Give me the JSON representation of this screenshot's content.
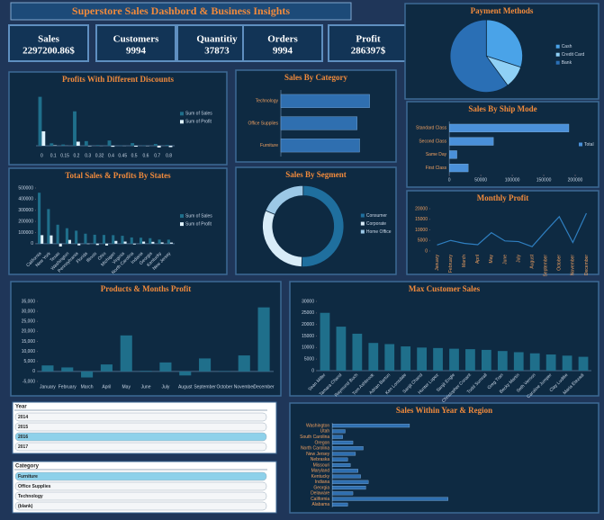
{
  "header": {
    "title": "Superstore Sales Dashbord  & Business Insights"
  },
  "kpis": [
    {
      "label": "Sales",
      "value": "2297200.86$"
    },
    {
      "label": "Customers",
      "value": "9994"
    },
    {
      "label": "Quantitiy",
      "value": "37873"
    },
    {
      "label": "Orders",
      "value": "9994"
    },
    {
      "label": "Profit",
      "value": "286397$"
    }
  ],
  "chart_data": [
    {
      "type": "pie",
      "title": "Payment Methods",
      "categories": [
        "Cash",
        "Credit Card",
        "Bank"
      ],
      "values": [
        689160,
        229720,
        1378320
      ],
      "colors": [
        "#4aa3e8",
        "#8fd0f5",
        "#2a6fb5"
      ],
      "legend": true
    },
    {
      "type": "bar",
      "title": "Profits With Different Discounts",
      "categories": [
        "0",
        "0.1",
        "0.15",
        "0.2",
        "0.3",
        "0.32",
        "0.4",
        "0.45",
        "0.5",
        "0.6",
        "0.7",
        "0.8"
      ],
      "series": [
        {
          "name": "Sum of Sales",
          "color": "#1f6f8b",
          "values": [
            1087908,
            54369,
            27558,
            764595,
            103226,
            14493,
            116418,
            5484,
            58918,
            6645,
            40620,
            16965
          ]
        },
        {
          "name": "Sum of Profit",
          "color": "#dff3ff",
          "values": [
            320988,
            9029,
            1418,
            90338,
            -10369,
            -2391,
            -23057,
            -2493,
            -20506,
            -5944,
            -40075,
            -30540
          ]
        }
      ],
      "ylim": [
        -100000,
        1200000
      ],
      "legend": true
    },
    {
      "type": "hbar",
      "title": "Sales By Category",
      "categories": [
        "Technology",
        "Office Supplies",
        "Furniture"
      ],
      "values": [
        836154,
        719047,
        742000
      ],
      "color": "#2f6fb0",
      "xlim": [
        0,
        1000000
      ]
    },
    {
      "type": "hbar",
      "title": "Sales By Ship Mode",
      "categories": [
        "Standard Class",
        "Second Class",
        "Same Day",
        "First Class"
      ],
      "series": [
        {
          "name": "Total",
          "color": "#4a90d9",
          "values": [
            190000,
            70000,
            12000,
            30000
          ]
        }
      ],
      "xlim": [
        0,
        200000
      ],
      "xticks": [
        0,
        50000,
        100000,
        150000,
        200000
      ],
      "legend": true
    },
    {
      "type": "bar",
      "title": "Total Sales & Profits By States",
      "categories": [
        "California",
        "New York",
        "Texas",
        "Washington",
        "Pennsylvania",
        "Florida",
        "Illinois",
        "Ohio",
        "Michigan",
        "Virginia",
        "North Carolina",
        "Indiana",
        "Georgia",
        "Kentucky",
        "New Jersey"
      ],
      "series": [
        {
          "name": "Sum of Sales",
          "color": "#1f6f8b",
          "values": [
            457688,
            310876,
            170188,
            138641,
            116512,
            89474,
            80166,
            78258,
            76270,
            70637,
            55603,
            53555,
            49096,
            36592,
            35764
          ]
        },
        {
          "name": "Sum of Profit",
          "color": "#dff3ff",
          "values": [
            76381,
            74039,
            -25729,
            33403,
            -15560,
            -3399,
            -12608,
            -16971,
            24463,
            18598,
            -7491,
            18383,
            16250,
            11200,
            9773
          ]
        }
      ],
      "ylim": [
        -50000,
        500000
      ],
      "yticks": [
        0,
        100000,
        200000,
        300000,
        400000,
        500000
      ],
      "legend": true
    },
    {
      "type": "pie",
      "title": "Sales By Segment",
      "categories": [
        "Consumer",
        "Corporate",
        "Home Office"
      ],
      "values": [
        1161401,
        706146,
        429653
      ],
      "colors": [
        "#1f6f9e",
        "#d8ecf8",
        "#9cc8e6"
      ],
      "hole": true,
      "legend": true
    },
    {
      "type": "line",
      "title": "Monthly Profit",
      "categories": [
        "January",
        "February",
        "March",
        "April",
        "May",
        "June",
        "July",
        "August",
        "September",
        "October",
        "November",
        "December"
      ],
      "values": [
        2824,
        5004,
        3611,
        2978,
        8662,
        4750,
        4432,
        2062,
        9329,
        16243,
        4011,
        17885
      ],
      "color": "#2f7fc0",
      "ylim": [
        0,
        20000
      ],
      "yticks": [
        0,
        5000,
        10000,
        15000,
        20000
      ]
    },
    {
      "type": "bar",
      "title": "Products & Months Profit",
      "categories": [
        "January",
        "February",
        "March",
        "April",
        "May",
        "June",
        "July",
        "August",
        "September",
        "October",
        "November",
        "December"
      ],
      "series": [
        {
          "name": "Profit",
          "color": "#1f6f8b",
          "values": [
            3000,
            2000,
            -3000,
            3500,
            18000,
            300,
            4500,
            -2000,
            6500,
            200,
            8000,
            32000
          ]
        }
      ],
      "ylim": [
        -5000,
        35000
      ],
      "yticks": [
        {
          "value": -5000,
          "label": "-5,000"
        },
        0,
        {
          "value": 5000,
          "label": "5,000"
        },
        {
          "value": 10000,
          "label": "10,000"
        },
        {
          "value": 15000,
          "label": "15,000"
        },
        {
          "value": 20000,
          "label": "20,000"
        },
        {
          "value": 25000,
          "label": "25,000"
        },
        {
          "value": 30000,
          "label": "30,000"
        },
        {
          "value": 35000,
          "label": "35,000"
        }
      ]
    },
    {
      "type": "bar",
      "title": "Max Customer Sales",
      "categories": [
        "Sean Miller",
        "Tamara Chand",
        "Raymond Buch",
        "Tom Ashbrook",
        "Adrian Barton",
        "Ken Lonsdale",
        "Sanjit Chand",
        "Hunter Lopez",
        "Sanjit Engle",
        "Christopher Conant",
        "Todd Sumrall",
        "Greg Tran",
        "Becky Martin",
        "Seth Vernon",
        "Caroline Jumper",
        "Clay Ludtke",
        "Maria Etezadi"
      ],
      "series": [
        {
          "name": "Sales",
          "color": "#1f6f8b",
          "values": [
            25043,
            19052,
            16000,
            12000,
            11500,
            10500,
            10000,
            9800,
            9500,
            9300,
            9000,
            8500,
            8000,
            7500,
            7000,
            6500,
            6000
          ]
        }
      ],
      "ylim": [
        0,
        30000
      ],
      "yticks": [
        0,
        5000,
        10000,
        15000,
        20000,
        25000,
        30000
      ]
    },
    {
      "type": "hbar",
      "title": "Sales Within Year & Region",
      "categories": [
        "Washington",
        "Utah",
        "South Carolina",
        "Oregon",
        "North Carolina",
        "New Jersey",
        "Nebraska",
        "Missouri",
        "Maryland",
        "Kentucky",
        "Indiana",
        "Georgia",
        "Delaware",
        "California",
        "Alabama"
      ],
      "values": [
        30000,
        5000,
        4000,
        8000,
        12000,
        9000,
        6000,
        7000,
        10000,
        11000,
        14000,
        13000,
        8000,
        45000,
        6000
      ],
      "color": "#2f6fb0",
      "xlim": [
        0,
        100000
      ]
    }
  ],
  "slicers": [
    {
      "title": "Year",
      "items": [
        {
          "label": "2014"
        },
        {
          "label": "2015"
        },
        {
          "label": "2016",
          "selected": true
        },
        {
          "label": "2017"
        }
      ]
    },
    {
      "title": "Category",
      "items": [
        {
          "label": "Furniture",
          "selected": true
        },
        {
          "label": "Office Supplies"
        },
        {
          "label": "Technology"
        },
        {
          "label": "(blank)"
        }
      ]
    }
  ]
}
